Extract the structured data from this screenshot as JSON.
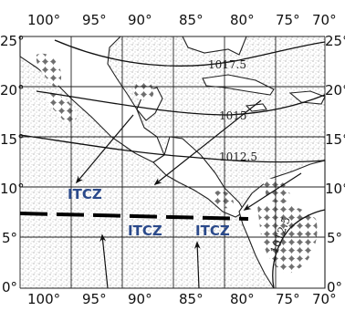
{
  "longitude_labels": [
    "100°",
    "95°",
    "90°",
    "85°",
    "80°",
    "75°",
    "70°"
  ],
  "latitude_labels": [
    "25°",
    "20°",
    "15°",
    "10°",
    "5°",
    "0°"
  ],
  "isobars": [
    {
      "label": "1017.5"
    },
    {
      "label": "1015"
    },
    {
      "label": "1012.5"
    },
    {
      "label": "1012.5"
    }
  ],
  "itcz_labels": [
    "ITCZ",
    "ITCZ",
    "ITCZ"
  ],
  "colors": {
    "ocean_stipple": "#9a9a9a",
    "land": "#ffffff",
    "rain_blobs": "#7d7d7d",
    "itcz_text": "#2b4a8b",
    "lines": "#111111"
  }
}
